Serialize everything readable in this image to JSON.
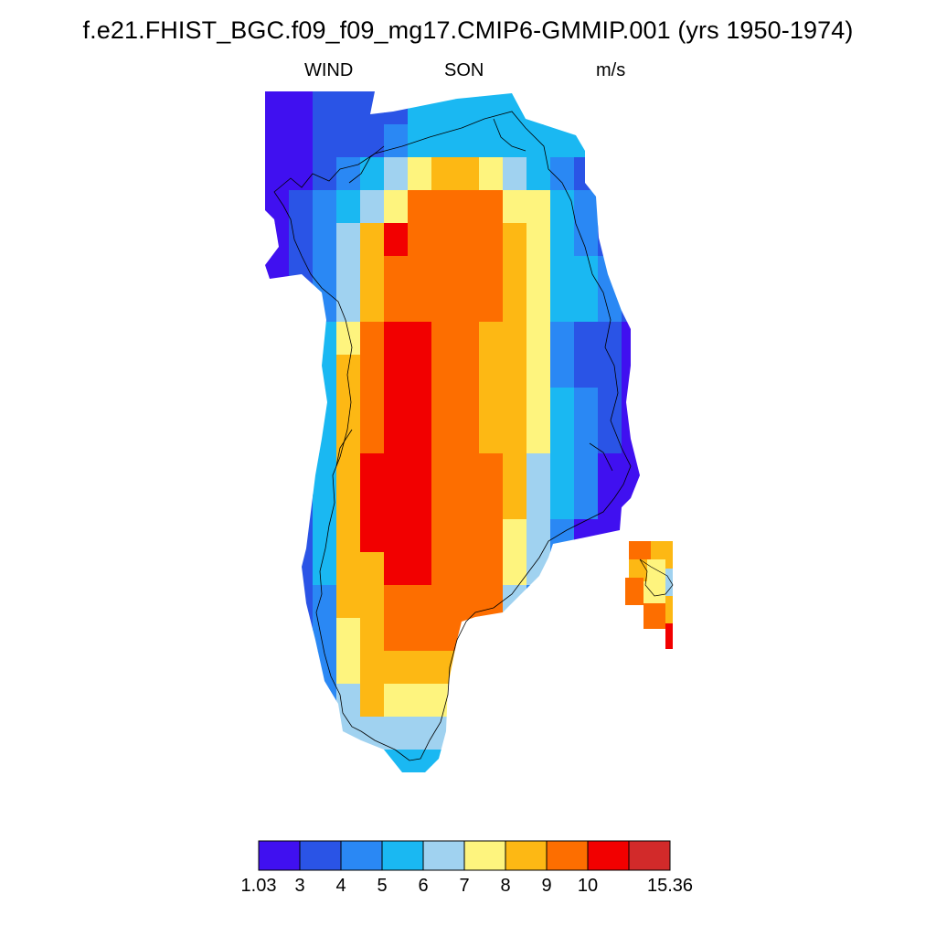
{
  "title": "f.e21.FHIST_BGC.f09_f09_mg17.CMIP6-GMMIP.001 (yrs 1950-1974)",
  "subtitle": {
    "left": "WIND",
    "center": "SON",
    "right": "m/s"
  },
  "colorbar": {
    "colors": [
      "#4010f0",
      "#2a54e6",
      "#2a88f4",
      "#1ab8f2",
      "#a0d2f0",
      "#fef47e",
      "#fdb814",
      "#fd6e00",
      "#f20000",
      "#d22a2a"
    ],
    "labels": [
      "1.03",
      "3",
      "4",
      "5",
      "6",
      "7",
      "8",
      "9",
      "10",
      "15.36"
    ]
  },
  "map": {
    "region": "Greenland",
    "variable": "WIND",
    "season": "SON",
    "units": "m/s",
    "rows": [
      "0011113333333311",
      "0011123333333311",
      "0012345665432111",
      "0123457777553211",
      "0124687777653211",
      "0124677777653321",
      "0124677777653321",
      "0135788776652110",
      "0136788776652110",
      "0136788776653210",
      "0136788776653210",
      "0136888777643200",
      "0136888777643200",
      "0136888777542000",
      "0136688777542000",
      "0126677777420000",
      "0125677776420000",
      "0125666664420000",
      "0124655554400000",
      "0124444444400000",
      "0013333334000000"
    ]
  }
}
